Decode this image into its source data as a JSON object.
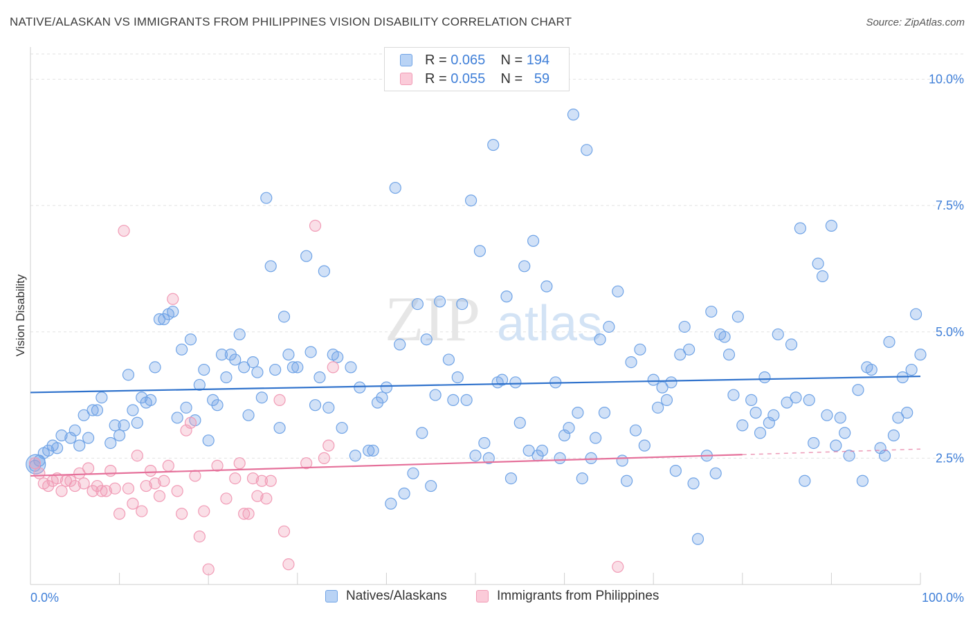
{
  "header": {
    "title": "NATIVE/ALASKAN VS IMMIGRANTS FROM PHILIPPINES VISION DISABILITY CORRELATION CHART",
    "source": "Source: ZipAtlas.com"
  },
  "legend_top": {
    "rows": [
      {
        "r_label": "R =",
        "r_value": "0.065",
        "n_label": "N =",
        "n_value": "194"
      },
      {
        "r_label": "R =",
        "r_value": "0.055",
        "n_label": "N =",
        "n_value": "59"
      }
    ]
  },
  "watermark": {
    "zip": "ZIP",
    "atlas": "atlas"
  },
  "chart_data": {
    "type": "scatter",
    "title": "NATIVE/ALASKAN VS IMMIGRANTS FROM PHILIPPINES VISION DISABILITY CORRELATION CHART",
    "xlabel": "",
    "ylabel": "Vision Disability",
    "xlim": [
      0,
      100
    ],
    "ylim": [
      0,
      10.5
    ],
    "x_tick_labels": [
      "0.0%",
      "100.0%"
    ],
    "y_ticks": [
      2.5,
      5.0,
      7.5,
      10.0
    ],
    "y_tick_labels": [
      "2.5%",
      "5.0%",
      "7.5%",
      "10.0%"
    ],
    "grid": true,
    "legend_position": "bottom",
    "colors": {
      "natives": "#6fa3e6",
      "natives_line": "#2f72cc",
      "philippines": "#f19ab5",
      "philippines_line": "#e5709a"
    },
    "series": [
      {
        "name": "Natives/Alaskans",
        "trend": {
          "x": [
            0,
            100
          ],
          "y": [
            3.8,
            4.12
          ]
        },
        "points": [
          [
            0.5,
            2.35
          ],
          [
            1,
            2.45
          ],
          [
            1.5,
            2.6
          ],
          [
            2,
            2.65
          ],
          [
            2.5,
            2.75
          ],
          [
            3,
            2.7
          ],
          [
            3.5,
            2.95
          ],
          [
            4.5,
            2.9
          ],
          [
            5,
            3.05
          ],
          [
            5.5,
            2.75
          ],
          [
            6,
            3.35
          ],
          [
            6.5,
            2.9
          ],
          [
            7,
            3.45
          ],
          [
            7.5,
            3.45
          ],
          [
            8,
            3.7
          ],
          [
            9,
            2.8
          ],
          [
            9.5,
            3.15
          ],
          [
            10,
            2.95
          ],
          [
            10.5,
            3.15
          ],
          [
            11,
            4.15
          ],
          [
            11.5,
            3.45
          ],
          [
            12,
            3.2
          ],
          [
            12.5,
            3.7
          ],
          [
            13,
            3.6
          ],
          [
            13.5,
            3.65
          ],
          [
            14,
            4.3
          ],
          [
            14.5,
            5.25
          ],
          [
            15,
            5.25
          ],
          [
            15.5,
            5.35
          ],
          [
            16,
            5.4
          ],
          [
            16.5,
            3.3
          ],
          [
            17,
            4.65
          ],
          [
            17.5,
            3.5
          ],
          [
            18,
            4.85
          ],
          [
            18.5,
            3.25
          ],
          [
            19,
            3.95
          ],
          [
            19.5,
            4.25
          ],
          [
            20,
            2.85
          ],
          [
            20.5,
            3.65
          ],
          [
            21,
            3.55
          ],
          [
            21.5,
            4.55
          ],
          [
            22,
            4.1
          ],
          [
            22.5,
            4.55
          ],
          [
            23,
            4.45
          ],
          [
            23.5,
            4.95
          ],
          [
            24,
            4.3
          ],
          [
            24.5,
            3.35
          ],
          [
            25,
            4.4
          ],
          [
            25.5,
            4.2
          ],
          [
            26,
            3.7
          ],
          [
            26.5,
            7.65
          ],
          [
            27,
            6.3
          ],
          [
            27.5,
            4.25
          ],
          [
            28,
            3.1
          ],
          [
            28.5,
            5.3
          ],
          [
            29,
            4.55
          ],
          [
            29.5,
            4.3
          ],
          [
            30,
            4.3
          ],
          [
            31,
            6.5
          ],
          [
            31.5,
            4.6
          ],
          [
            32,
            3.55
          ],
          [
            32.5,
            4.1
          ],
          [
            33,
            6.2
          ],
          [
            33.5,
            3.5
          ],
          [
            34,
            4.55
          ],
          [
            34.5,
            4.5
          ],
          [
            35,
            3.1
          ],
          [
            36,
            4.3
          ],
          [
            36.5,
            2.55
          ],
          [
            37,
            3.9
          ],
          [
            38,
            2.65
          ],
          [
            38.5,
            2.65
          ],
          [
            39,
            3.6
          ],
          [
            39.5,
            3.7
          ],
          [
            40,
            3.9
          ],
          [
            40.5,
            1.6
          ],
          [
            41,
            7.85
          ],
          [
            41.5,
            4.75
          ],
          [
            42,
            1.8
          ],
          [
            43,
            2.2
          ],
          [
            43.5,
            5.55
          ],
          [
            44,
            3.0
          ],
          [
            44.5,
            4.85
          ],
          [
            45,
            1.95
          ],
          [
            45.5,
            3.75
          ],
          [
            46,
            5.6
          ],
          [
            47,
            4.45
          ],
          [
            47.5,
            3.65
          ],
          [
            48,
            4.1
          ],
          [
            48.5,
            5.55
          ],
          [
            49,
            3.65
          ],
          [
            49.5,
            7.6
          ],
          [
            50,
            2.55
          ],
          [
            50.5,
            6.6
          ],
          [
            51,
            2.8
          ],
          [
            51.5,
            2.5
          ],
          [
            52,
            8.7
          ],
          [
            52.5,
            4.0
          ],
          [
            53,
            4.05
          ],
          [
            53.5,
            5.7
          ],
          [
            54,
            2.1
          ],
          [
            54.5,
            4.0
          ],
          [
            55,
            3.2
          ],
          [
            55.5,
            6.3
          ],
          [
            56,
            2.65
          ],
          [
            56.5,
            6.8
          ],
          [
            57,
            2.55
          ],
          [
            57.5,
            2.65
          ],
          [
            58,
            5.9
          ],
          [
            59,
            4.0
          ],
          [
            59.5,
            2.5
          ],
          [
            60,
            2.95
          ],
          [
            60.5,
            3.1
          ],
          [
            61,
            9.3
          ],
          [
            61.5,
            3.4
          ],
          [
            62,
            2.1
          ],
          [
            62.5,
            8.6
          ],
          [
            63,
            2.5
          ],
          [
            63.5,
            2.9
          ],
          [
            64,
            4.85
          ],
          [
            64.5,
            3.4
          ],
          [
            65,
            5.1
          ],
          [
            66,
            5.8
          ],
          [
            66.5,
            2.45
          ],
          [
            67,
            2.05
          ],
          [
            67.5,
            4.4
          ],
          [
            68,
            3.05
          ],
          [
            68.5,
            4.65
          ],
          [
            69,
            2.75
          ],
          [
            70,
            4.05
          ],
          [
            70.5,
            3.5
          ],
          [
            71,
            3.9
          ],
          [
            71.5,
            3.65
          ],
          [
            72,
            4.0
          ],
          [
            72.5,
            2.25
          ],
          [
            73,
            4.55
          ],
          [
            73.5,
            5.1
          ],
          [
            74,
            4.65
          ],
          [
            74.5,
            2.0
          ],
          [
            75,
            0.9
          ],
          [
            76,
            2.55
          ],
          [
            76.5,
            5.4
          ],
          [
            77,
            2.2
          ],
          [
            77.5,
            4.95
          ],
          [
            78,
            4.9
          ],
          [
            78.5,
            4.55
          ],
          [
            79,
            3.75
          ],
          [
            79.5,
            5.3
          ],
          [
            80,
            3.15
          ],
          [
            81,
            3.65
          ],
          [
            81.5,
            3.4
          ],
          [
            82,
            3.0
          ],
          [
            82.5,
            4.1
          ],
          [
            83,
            3.2
          ],
          [
            83.5,
            3.35
          ],
          [
            84,
            4.95
          ],
          [
            85,
            3.6
          ],
          [
            85.5,
            4.75
          ],
          [
            86,
            3.7
          ],
          [
            86.5,
            7.05
          ],
          [
            87,
            2.05
          ],
          [
            87.5,
            3.65
          ],
          [
            88,
            2.8
          ],
          [
            88.5,
            6.35
          ],
          [
            89,
            6.1
          ],
          [
            89.5,
            3.35
          ],
          [
            90,
            7.1
          ],
          [
            90.5,
            2.75
          ],
          [
            91,
            3.3
          ],
          [
            91.5,
            3.0
          ],
          [
            92,
            2.55
          ],
          [
            93,
            3.85
          ],
          [
            93.5,
            2.05
          ],
          [
            94,
            4.3
          ],
          [
            94.5,
            4.25
          ],
          [
            95.5,
            2.7
          ],
          [
            96,
            2.55
          ],
          [
            96.5,
            4.8
          ],
          [
            97,
            2.95
          ],
          [
            97.5,
            3.3
          ],
          [
            98,
            4.1
          ],
          [
            98.5,
            3.4
          ],
          [
            99,
            4.25
          ],
          [
            99.5,
            5.35
          ],
          [
            100,
            4.55
          ]
        ]
      },
      {
        "name": "Immigrants from Philippines",
        "trend": {
          "x": [
            0,
            80
          ],
          "y": [
            2.15,
            2.57
          ]
        },
        "trend_dashed": {
          "x": [
            80,
            100
          ],
          "y": [
            2.57,
            2.68
          ]
        },
        "points": [
          [
            0.5,
            2.4
          ],
          [
            1,
            2.2
          ],
          [
            1.5,
            2.0
          ],
          [
            2,
            1.95
          ],
          [
            2.5,
            2.05
          ],
          [
            3,
            2.1
          ],
          [
            3.5,
            1.85
          ],
          [
            4,
            2.05
          ],
          [
            4.5,
            2.05
          ],
          [
            5,
            1.95
          ],
          [
            5.5,
            2.2
          ],
          [
            6,
            2.0
          ],
          [
            6.5,
            2.3
          ],
          [
            7,
            1.85
          ],
          [
            7.5,
            1.95
          ],
          [
            8,
            1.85
          ],
          [
            8.5,
            1.85
          ],
          [
            9,
            2.25
          ],
          [
            9.5,
            1.9
          ],
          [
            10,
            1.4
          ],
          [
            10.5,
            7.0
          ],
          [
            11,
            1.9
          ],
          [
            11.5,
            1.6
          ],
          [
            12,
            2.55
          ],
          [
            12.5,
            1.45
          ],
          [
            13,
            1.95
          ],
          [
            13.5,
            2.25
          ],
          [
            14,
            2.0
          ],
          [
            14.5,
            1.75
          ],
          [
            15,
            2.05
          ],
          [
            15.5,
            2.35
          ],
          [
            16,
            5.65
          ],
          [
            16.5,
            1.85
          ],
          [
            17,
            1.4
          ],
          [
            17.5,
            3.05
          ],
          [
            18,
            3.2
          ],
          [
            18.5,
            2.15
          ],
          [
            19,
            0.95
          ],
          [
            19.5,
            1.45
          ],
          [
            20,
            0.3
          ],
          [
            21,
            2.35
          ],
          [
            22,
            1.7
          ],
          [
            23,
            2.1
          ],
          [
            23.5,
            2.4
          ],
          [
            24,
            1.4
          ],
          [
            24.5,
            1.4
          ],
          [
            25,
            2.1
          ],
          [
            25.5,
            1.75
          ],
          [
            26,
            2.05
          ],
          [
            26.5,
            1.7
          ],
          [
            27,
            2.05
          ],
          [
            28,
            3.65
          ],
          [
            28.5,
            1.05
          ],
          [
            29,
            0.4
          ],
          [
            31,
            2.4
          ],
          [
            32,
            7.1
          ],
          [
            33,
            2.5
          ],
          [
            33.5,
            2.75
          ],
          [
            34,
            4.3
          ],
          [
            66,
            0.35
          ]
        ]
      }
    ]
  },
  "axes": {
    "y_ticks": [
      "10.0%",
      "7.5%",
      "5.0%",
      "2.5%"
    ],
    "x_ticks": [
      "0.0%",
      "100.0%"
    ],
    "ylabel": "Vision Disability"
  },
  "bottom_legend": {
    "items": [
      {
        "label": "Natives/Alaskans"
      },
      {
        "label": "Immigrants from Philippines"
      }
    ]
  }
}
